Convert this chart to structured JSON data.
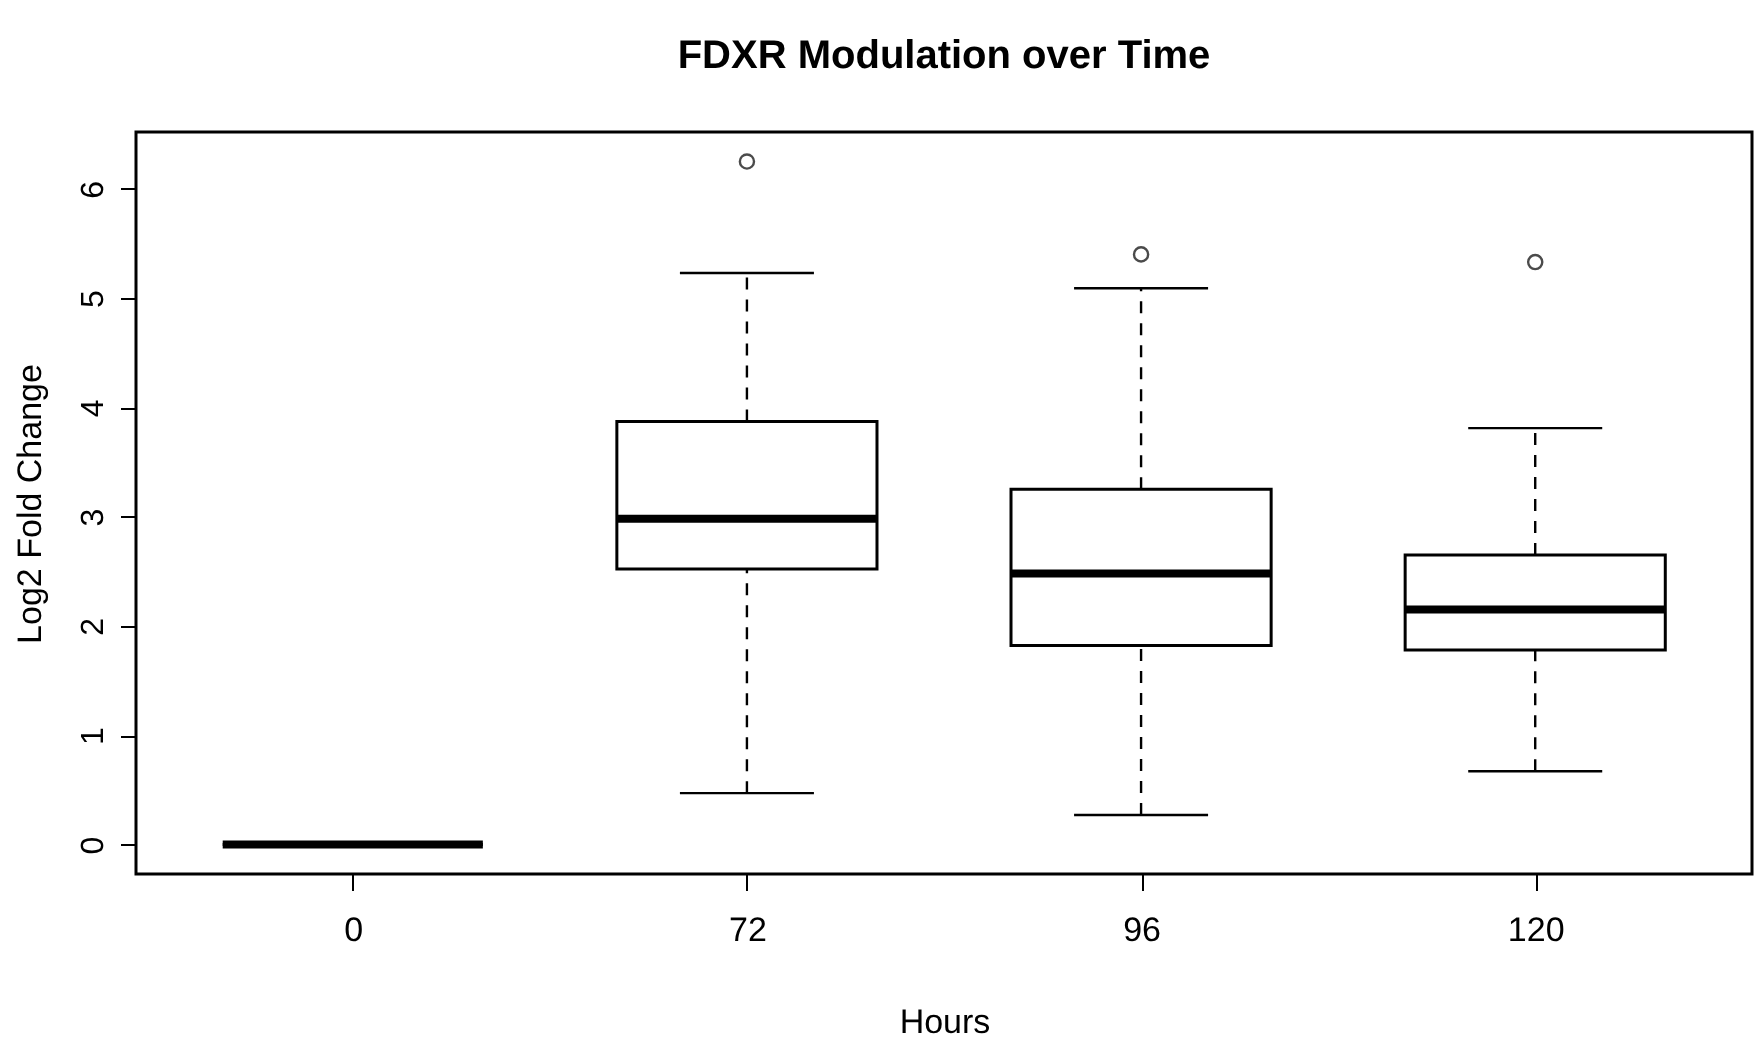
{
  "chart_data": {
    "type": "box",
    "title": "FDXR Modulation over Time",
    "xlabel": "Hours",
    "ylabel": "Log2 Fold Change",
    "categories": [
      "0",
      "72",
      "96",
      "120"
    ],
    "boxes": [
      {
        "low": 0,
        "q1": 0,
        "median": 0,
        "q3": 0,
        "high": 0
      },
      {
        "low": 0.47,
        "q1": 2.52,
        "median": 2.98,
        "q3": 3.87,
        "high": 5.23,
        "outliers": [
          6.25
        ]
      },
      {
        "low": 0.27,
        "q1": 1.82,
        "median": 2.48,
        "q3": 3.25,
        "high": 5.09,
        "outliers": [
          5.4
        ]
      },
      {
        "low": 0.67,
        "q1": 1.78,
        "median": 2.15,
        "q3": 2.65,
        "high": 3.81,
        "outliers": [
          5.33
        ]
      }
    ],
    "ylim": [
      -0.27,
      6.52
    ],
    "yticks": [
      0,
      1,
      2,
      3,
      4,
      5,
      6
    ],
    "grid": false
  }
}
